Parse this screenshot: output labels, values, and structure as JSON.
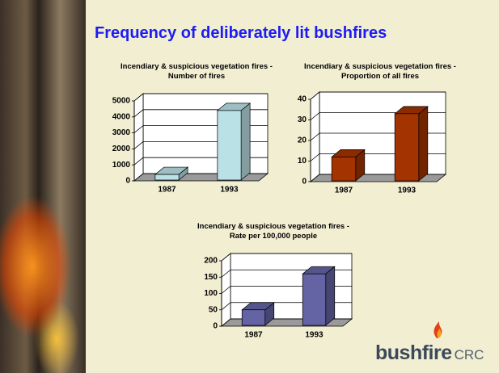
{
  "title": "Frequency of deliberately lit bushfires",
  "logo": {
    "brand": "bushfire",
    "suffix": "CRC"
  },
  "chart_data": [
    {
      "type": "bar",
      "title": "Incendiary & suspicious vegetation fires - Number of fires",
      "categories": [
        "1987",
        "1993"
      ],
      "values": [
        400,
        4400
      ],
      "color": "#b9e1e6",
      "ylim": [
        0,
        5000
      ],
      "yticks": [
        0,
        1000,
        2000,
        3000,
        4000,
        5000
      ],
      "grid": true
    },
    {
      "type": "bar",
      "title": "Incendiary & suspicious vegetation fires - Proportion of all fires",
      "categories": [
        "1987",
        "1993"
      ],
      "values": [
        12,
        33
      ],
      "color": "#a33300",
      "ylim": [
        0,
        40
      ],
      "yticks": [
        0,
        10,
        20,
        30,
        40
      ],
      "grid": true
    },
    {
      "type": "bar",
      "title": "Incendiary & suspicious vegetation fires - Rate per 100,000 people",
      "categories": [
        "1987",
        "1993"
      ],
      "values": [
        50,
        160
      ],
      "color": "#6464a4",
      "ylim": [
        0,
        200
      ],
      "yticks": [
        0,
        50,
        100,
        150,
        200
      ],
      "grid": true
    }
  ]
}
